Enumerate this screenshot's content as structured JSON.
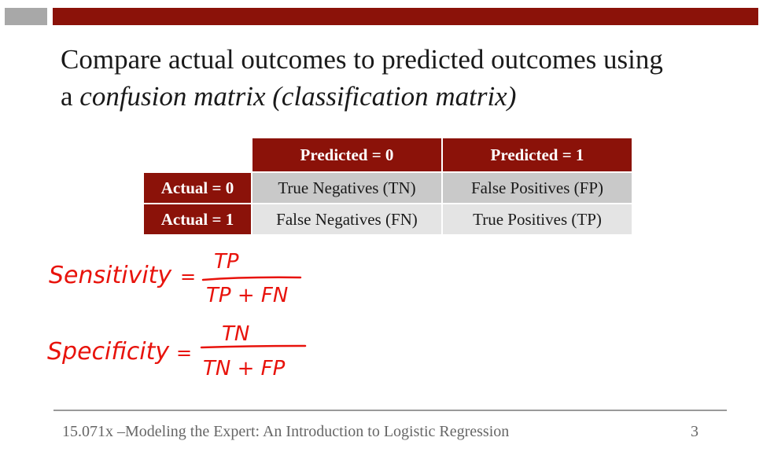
{
  "slide": {
    "title_line1": "Compare actual outcomes to predicted outcomes using",
    "title_line2_prefix": "a ",
    "title_line2_emph": "confusion matrix (classification matrix)"
  },
  "matrix": {
    "col_headers": [
      "Predicted = 0",
      "Predicted = 1"
    ],
    "rows": [
      {
        "label": "Actual = 0",
        "cells": [
          "True Negatives (TN)",
          "False Positives (FP)"
        ]
      },
      {
        "label": "Actual = 1",
        "cells": [
          "False Negatives (FN)",
          "True Positives (TP)"
        ]
      }
    ]
  },
  "annotations": {
    "sensitivity_label": "Sensitivity",
    "sensitivity_numerator": "TP",
    "sensitivity_denominator": "TP + FN",
    "specificity_label": "Specificity",
    "specificity_numerator": "TN",
    "specificity_denominator": "TN + FP",
    "equals": "=",
    "ink_color": "#e8130c"
  },
  "footer": {
    "text": "15.071x –Modeling the Expert: An Introduction to Logistic Regression",
    "page_number": "3"
  },
  "colors": {
    "accent": "#8b1209",
    "bar_grey": "#a8a8a8",
    "cell_dark": "#c9c9c9",
    "cell_light": "#e4e4e4"
  }
}
